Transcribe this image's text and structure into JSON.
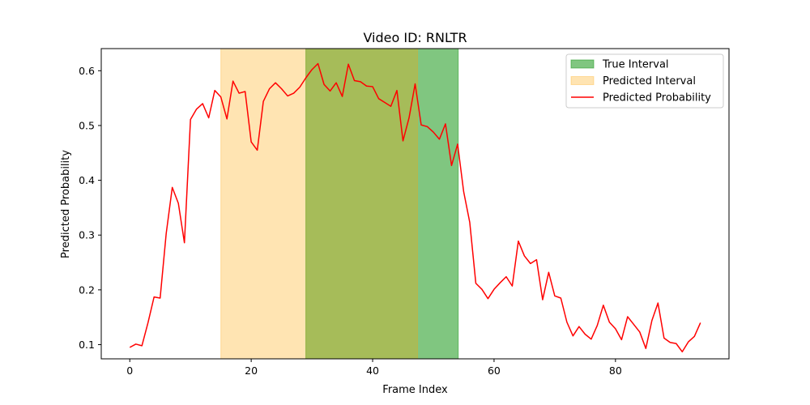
{
  "chart_data": {
    "type": "line",
    "title": "Video ID: RNLTR",
    "xlabel": "Frame Index",
    "ylabel": "Predicted Probability",
    "xlim": [
      -4.7,
      98.7
    ],
    "ylim": [
      0.0741,
      0.6404
    ],
    "xticks": [
      0,
      20,
      40,
      60,
      80
    ],
    "yticks": [
      0.1,
      0.2,
      0.3,
      0.4,
      0.5,
      0.6
    ],
    "grid": false,
    "legend_position": "top-right",
    "intervals": [
      {
        "name": "True Interval",
        "start": 29,
        "end": 54.1,
        "color": "#2ca02c",
        "opacity": 0.6
      },
      {
        "name": "Predicted Interval",
        "start": 15,
        "end": 47.4,
        "color": "#ffa500",
        "opacity": 0.3
      }
    ],
    "series": [
      {
        "name": "Predicted Probability",
        "color": "#ff0000",
        "x": [
          0,
          1,
          2,
          3,
          4,
          5,
          6,
          7,
          8,
          9,
          10,
          11,
          12,
          13,
          14,
          15,
          16,
          17,
          18,
          19,
          20,
          21,
          22,
          23,
          24,
          25,
          26,
          27,
          28,
          29,
          30,
          31,
          32,
          33,
          34,
          35,
          36,
          37,
          38,
          39,
          40,
          41,
          42,
          43,
          44,
          45,
          46,
          47,
          48,
          49,
          50,
          51,
          52,
          53,
          54,
          55,
          56,
          57,
          58,
          59,
          60,
          61,
          62,
          63,
          64,
          65,
          66,
          67,
          68,
          69,
          70,
          71,
          72,
          73,
          74,
          75,
          76,
          77,
          78,
          79,
          80,
          81,
          82,
          83,
          84,
          85,
          86,
          87,
          88,
          89,
          90,
          91,
          92,
          93,
          94
        ],
        "values": [
          0.095,
          0.101,
          0.098,
          0.14,
          0.187,
          0.185,
          0.303,
          0.387,
          0.358,
          0.286,
          0.511,
          0.53,
          0.54,
          0.514,
          0.564,
          0.552,
          0.512,
          0.581,
          0.559,
          0.562,
          0.47,
          0.455,
          0.544,
          0.567,
          0.578,
          0.567,
          0.554,
          0.559,
          0.57,
          0.587,
          0.602,
          0.613,
          0.575,
          0.563,
          0.578,
          0.553,
          0.612,
          0.582,
          0.58,
          0.572,
          0.571,
          0.549,
          0.542,
          0.535,
          0.564,
          0.472,
          0.514,
          0.576,
          0.501,
          0.498,
          0.488,
          0.475,
          0.503,
          0.427,
          0.466,
          0.379,
          0.323,
          0.212,
          0.201,
          0.184,
          0.201,
          0.213,
          0.224,
          0.207,
          0.289,
          0.262,
          0.248,
          0.255,
          0.182,
          0.232,
          0.189,
          0.185,
          0.141,
          0.116,
          0.133,
          0.119,
          0.11,
          0.135,
          0.172,
          0.141,
          0.129,
          0.109,
          0.151,
          0.137,
          0.123,
          0.093,
          0.144,
          0.176,
          0.112,
          0.104,
          0.102,
          0.087,
          0.105,
          0.115,
          0.14
        ]
      }
    ]
  }
}
